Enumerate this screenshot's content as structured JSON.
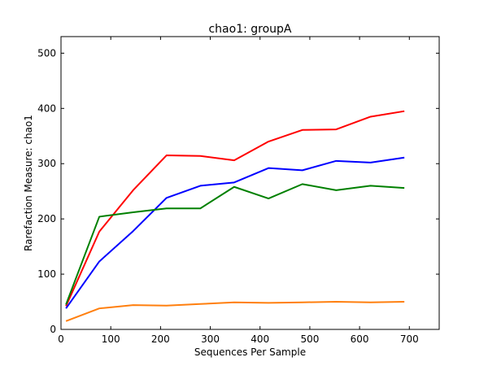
{
  "chart_data": {
    "type": "line",
    "title": "chao1: groupA",
    "xlabel": "Sequences Per Sample",
    "ylabel": "Rarefaction Measure: chao1",
    "xlim": [
      0,
      760
    ],
    "ylim": [
      0,
      530
    ],
    "xticks": [
      0,
      100,
      200,
      300,
      400,
      500,
      600,
      700
    ],
    "yticks": [
      0,
      100,
      200,
      300,
      400,
      500
    ],
    "grid": false,
    "x": [
      10,
      77,
      145,
      212,
      280,
      348,
      417,
      485,
      553,
      622,
      690
    ],
    "series": [
      {
        "color": "#ff0000",
        "values": [
          42,
          177,
          252,
          315,
          314,
          306,
          340,
          361,
          362,
          385,
          395
        ]
      },
      {
        "color": "#0000ff",
        "values": [
          38,
          123,
          178,
          238,
          260,
          266,
          292,
          288,
          305,
          302,
          311
        ]
      },
      {
        "color": "#008000",
        "values": [
          45,
          204,
          212,
          219,
          219,
          258,
          237,
          263,
          252,
          260,
          256
        ]
      },
      {
        "color": "#ff7f0e",
        "values": [
          15,
          38,
          44,
          43,
          46,
          49,
          48,
          49,
          50,
          49,
          50
        ]
      }
    ]
  }
}
